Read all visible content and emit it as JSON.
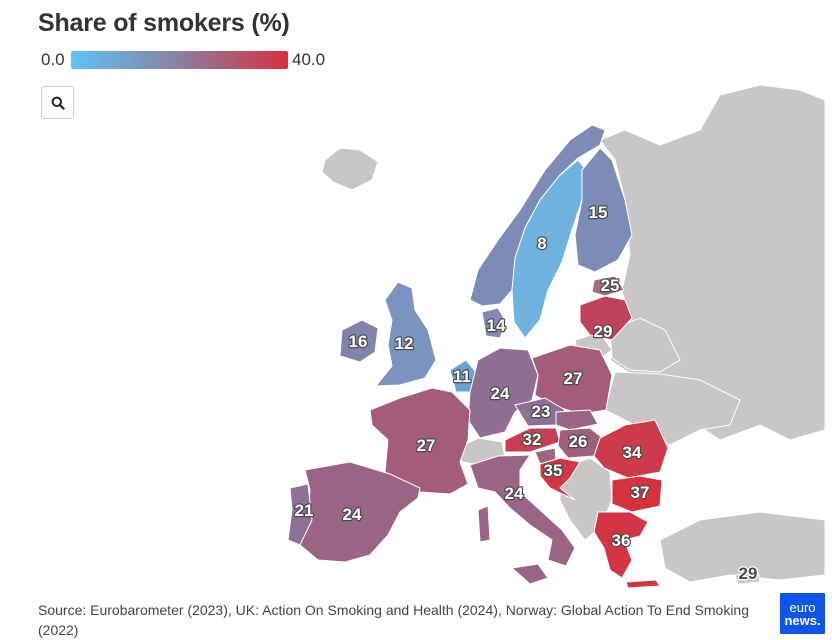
{
  "title": "Share of smokers (%)",
  "legend": {
    "min_label": "0.0",
    "max_label": "40.0",
    "min_color": "#5ec4f6",
    "mid_color": "#8a7fa0",
    "max_color": "#d6323c"
  },
  "search_button": {
    "icon": "search-icon"
  },
  "map": {
    "colors": {
      "no_data": "#c9c6c6",
      "sea": "#ffffff"
    },
    "countries": [
      {
        "name": "Sweden",
        "value": 8
      },
      {
        "name": "Finland",
        "value": 15
      },
      {
        "name": "Estonia",
        "value": 25
      },
      {
        "name": "Latvia",
        "value": 29
      },
      {
        "name": "Denmark",
        "value": 14
      },
      {
        "name": "Ireland",
        "value": 16
      },
      {
        "name": "United Kingdom",
        "value": 12
      },
      {
        "name": "Netherlands",
        "value": 11
      },
      {
        "name": "Germany",
        "value": 24
      },
      {
        "name": "Poland",
        "value": 27
      },
      {
        "name": "Czechia",
        "value": 23
      },
      {
        "name": "France",
        "value": 27
      },
      {
        "name": "Austria",
        "value": 32
      },
      {
        "name": "Hungary",
        "value": 26
      },
      {
        "name": "Romania",
        "value": 34
      },
      {
        "name": "Croatia",
        "value": 35
      },
      {
        "name": "Bulgaria",
        "value": 37
      },
      {
        "name": "Italy",
        "value": 24
      },
      {
        "name": "Portugal",
        "value": 21
      },
      {
        "name": "Spain",
        "value": 24
      },
      {
        "name": "Greece",
        "value": 36
      },
      {
        "name": "Cyprus",
        "value": 29
      }
    ]
  },
  "labels": {
    "sweden": "8",
    "finland": "15",
    "estonia": "25",
    "latvia": "29",
    "denmark": "14",
    "ireland": "16",
    "uk": "12",
    "netherlands": "11",
    "germany": "24",
    "poland": "27",
    "czechia": "23",
    "france": "27",
    "austria": "32",
    "hungary": "26",
    "romania": "34",
    "croatia": "35",
    "bulgaria": "37",
    "italy": "24",
    "portugal": "21",
    "spain": "24",
    "greece": "36",
    "cyprus": "29"
  },
  "source": "Source: Eurobarometer (2023), UK: Action On Smoking and Health (2024), Norway: Global Action To End Smoking (2022)",
  "logo": {
    "line1": "euro",
    "line2": "news."
  }
}
